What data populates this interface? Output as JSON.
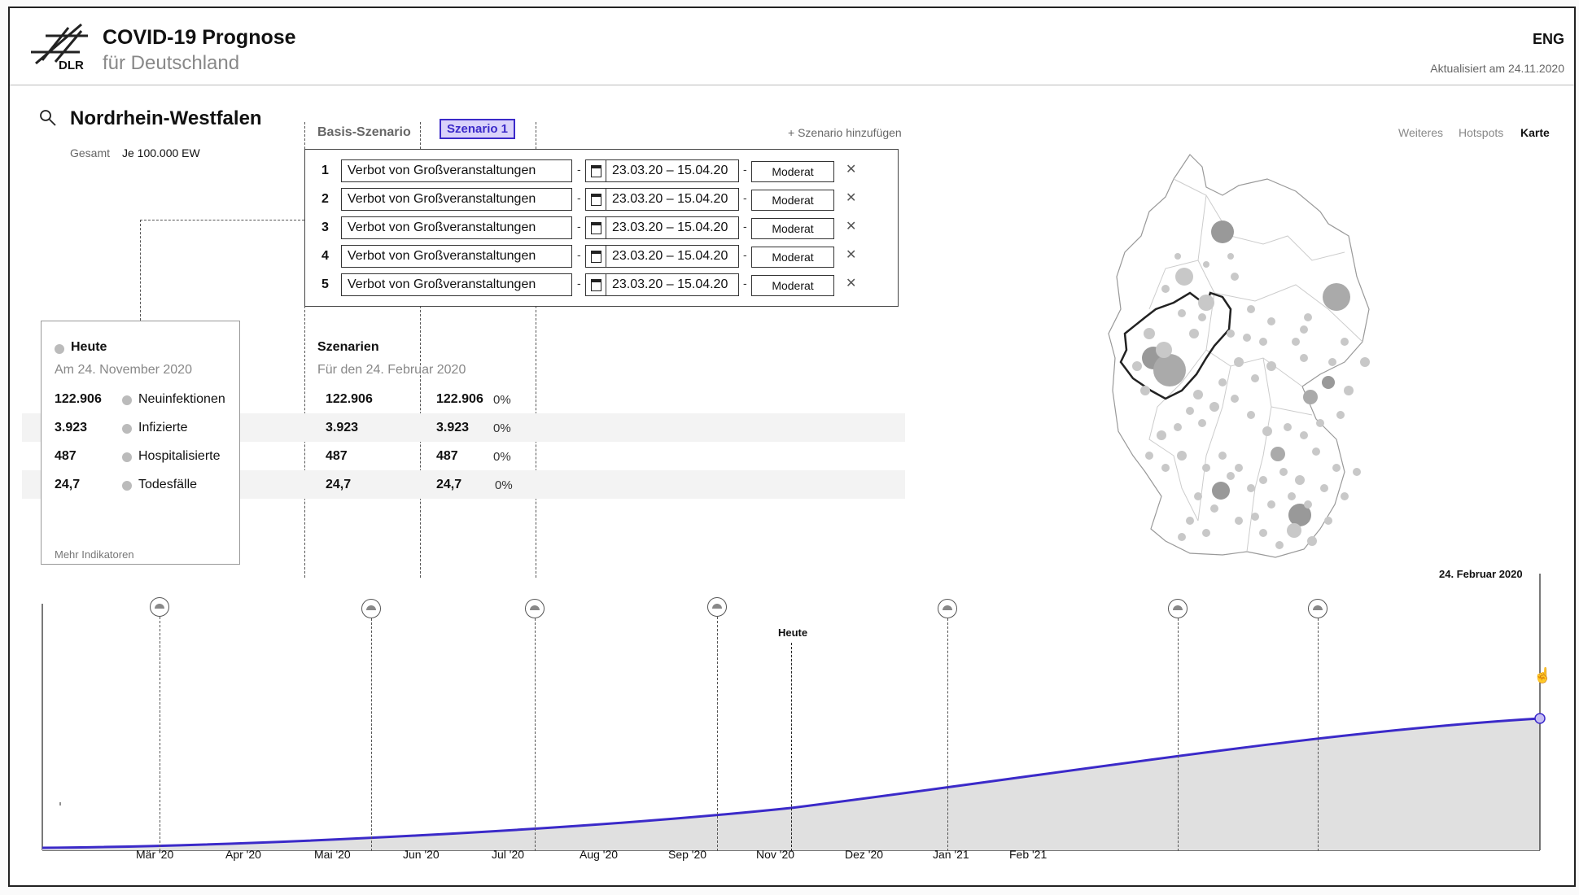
{
  "header": {
    "logo_text": "DLR",
    "title": "COVID-19 Prognose",
    "subtitle": "für Deutschland",
    "language": "ENG",
    "updated": "Aktualisiert am 24.11.2020"
  },
  "region": {
    "name": "Nordrhein-Westfalen",
    "total_label": "Gesamt",
    "per_label": "Je 100.000 EW"
  },
  "scenarios": {
    "base_tab": "Basis-Szenario",
    "active_tab": "Szenario 1",
    "add_link": "+ Szenario hinzufügen",
    "rows": [
      {
        "num": "1",
        "measure": "Verbot von Großveranstaltungen",
        "dates": "23.03.20 – 15.04.20",
        "level": "Moderat"
      },
      {
        "num": "2",
        "measure": "Verbot von Großveranstaltungen",
        "dates": "23.03.20 – 15.04.20",
        "level": "Moderat"
      },
      {
        "num": "3",
        "measure": "Verbot von Großveranstaltungen",
        "dates": "23.03.20 – 15.04.20",
        "level": "Moderat"
      },
      {
        "num": "4",
        "measure": "Verbot von Großveranstaltungen",
        "dates": "23.03.20 – 15.04.20",
        "level": "Moderat"
      },
      {
        "num": "5",
        "measure": "Verbot von Großveranstaltungen",
        "dates": "23.03.20 – 15.04.20",
        "level": "Moderat"
      }
    ]
  },
  "view_tabs": [
    "Weiteres",
    "Hotspots",
    "Karte"
  ],
  "view_tab_active": "Karte",
  "today": {
    "title": "Heute",
    "date": "Am 24. November 2020",
    "more": "Mehr Indikatoren"
  },
  "szenarien": {
    "title": "Szenarien",
    "date": "Für den 24. Februar 2020"
  },
  "indicators": [
    {
      "label": "Neuinfektionen",
      "today": "122.906",
      "base": "122.906",
      "s1": "122.906",
      "pct": "0%"
    },
    {
      "label": "Infizierte",
      "today": "3.923",
      "base": "3.923",
      "s1": "3.923",
      "pct": "0%"
    },
    {
      "label": "Hospitalisierte",
      "today": "487",
      "base": "487",
      "s1": "487",
      "pct": "0%"
    },
    {
      "label": "Todesfälle",
      "today": "24,7",
      "base": "24,7",
      "s1": "24,7",
      "pct": "0%"
    }
  ],
  "timeline": {
    "today_label": "Heute",
    "end_label": "24. Februar 2020",
    "months": [
      "Mär '20",
      "Apr '20",
      "Mai '20",
      "Jun '20",
      "Jul '20",
      "Aug '20",
      "Sep '20",
      "Nov '20",
      "Dez '20",
      "Jan '21",
      "Feb '21"
    ],
    "line_color": "#3b2ac9"
  }
}
